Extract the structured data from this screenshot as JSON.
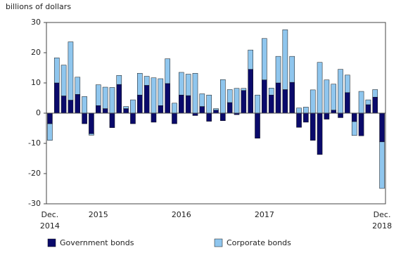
{
  "chart_data": {
    "type": "stacked_bar",
    "y_label": "billions of dollars",
    "categories": [
      "Dec.\n2014",
      null,
      null,
      null,
      null,
      null,
      null,
      "2015",
      null,
      null,
      null,
      null,
      null,
      null,
      null,
      null,
      null,
      null,
      null,
      "2016",
      null,
      null,
      null,
      null,
      null,
      null,
      null,
      null,
      null,
      null,
      null,
      "2017",
      null,
      null,
      null,
      null,
      null,
      null,
      null,
      null,
      null,
      null,
      null,
      null,
      null,
      null,
      null,
      null,
      "Dec.\n2018"
    ],
    "series": [
      {
        "name": "Government bonds",
        "color": "#0a0a6b",
        "values": [
          -3.5,
          10,
          5.7,
          4.3,
          6.2,
          -3.5,
          -6.8,
          2.5,
          1.5,
          -4.8,
          9.5,
          1.5,
          -3.5,
          6,
          9.2,
          -3,
          2.5,
          9.8,
          -3.5,
          6,
          5.8,
          -0.8,
          2.2,
          -2.7,
          1,
          -2.5,
          3.5,
          -0.5,
          7.5,
          14.5,
          -8.3,
          11,
          6,
          10,
          7.8,
          10.2,
          -4.7,
          -3,
          -9,
          -13.7,
          -2,
          1,
          -1.5,
          6.8,
          -2.8,
          -7.5,
          2.8,
          5.3,
          -9.5
        ]
      },
      {
        "name": "Corporate bonds",
        "color": "#8fc6ee",
        "values": [
          -5.5,
          8.3,
          10.2,
          19.3,
          5.7,
          5.5,
          -0.5,
          6.9,
          7.1,
          8.5,
          3,
          0.7,
          4.4,
          7.2,
          3,
          11.7,
          8.9,
          8.2,
          3.3,
          7.5,
          7.1,
          13.2,
          4.2,
          6,
          0.5,
          11.1,
          4.3,
          8.2,
          0.7,
          6.4,
          6,
          13.7,
          2.3,
          8.8,
          19.8,
          8.6,
          1.7,
          2,
          7.7,
          16.8,
          11,
          8.6,
          14.5,
          5.8,
          -4.6,
          7.2,
          1.6,
          2.5,
          -15.4
        ]
      }
    ],
    "ylim": [
      -30,
      30
    ],
    "yticks": [
      -30,
      -20,
      -10,
      0,
      10,
      20,
      30
    ],
    "grid": false
  }
}
